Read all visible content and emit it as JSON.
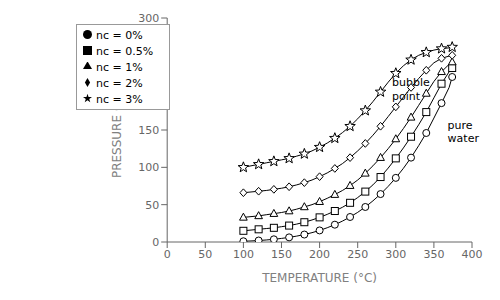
{
  "chart_data": {
    "type": "line",
    "xlabel": "TEMPERATURE (°C)",
    "ylabel": "PRESSURE (bar)",
    "xlim": [
      0,
      400
    ],
    "ylim": [
      0,
      300
    ],
    "xticks": [
      0,
      50,
      100,
      150,
      200,
      250,
      300,
      350,
      400
    ],
    "yticks": [
      0,
      50,
      100,
      150,
      200,
      250,
      300
    ],
    "grid": false,
    "legend": "upper left",
    "annotations": [
      {
        "text": "bubble\npoint",
        "x": 295,
        "y": 205
      },
      {
        "text": "pure\nwater",
        "x": 368,
        "y": 148
      }
    ],
    "x": [
      100,
      110,
      120,
      130,
      140,
      150,
      160,
      170,
      180,
      190,
      200,
      210,
      220,
      230,
      240,
      250,
      260,
      270,
      280,
      290,
      300,
      310,
      320,
      330,
      340,
      350,
      360,
      370,
      374
    ],
    "series": [
      {
        "name": "nc = 0%",
        "color": "#000000",
        "marker": "circle",
        "values": [
          1.0,
          1.4,
          2.0,
          2.7,
          3.6,
          4.8,
          6.2,
          7.9,
          10.0,
          12.5,
          15.5,
          19.1,
          23.2,
          28.0,
          33.5,
          39.7,
          46.9,
          55.1,
          64.2,
          74.5,
          85.9,
          98.7,
          113,
          129,
          146,
          166,
          186,
          207,
          221
        ]
      },
      {
        "name": "nc = 0.5%",
        "color": "#000000",
        "marker": "square",
        "values": [
          15,
          16,
          17,
          18,
          19,
          20.5,
          22,
          24,
          26.5,
          29.5,
          33.0,
          37.0,
          41.5,
          46.5,
          52.5,
          59.5,
          67.5,
          76.5,
          87.0,
          99.0,
          112,
          126,
          141,
          157,
          174,
          193,
          212,
          228,
          233
        ]
      },
      {
        "name": "nc = 1%",
        "color": "#000000",
        "marker": "triangle",
        "values": [
          33,
          34,
          35,
          36.5,
          38,
          39.5,
          41.5,
          44,
          47,
          50,
          54,
          58.5,
          63.5,
          69,
          75.5,
          83,
          92,
          102,
          113,
          125,
          138,
          152,
          167,
          183,
          199,
          215,
          228,
          238,
          241
        ]
      },
      {
        "name": "nc = 2%",
        "color": "#000000",
        "marker": "diamond",
        "values": [
          66,
          67,
          68,
          69,
          70.5,
          72,
          74,
          76.5,
          79.5,
          83,
          87.5,
          92.5,
          98.5,
          105,
          113,
          122,
          132,
          143,
          155,
          168,
          181,
          194,
          207,
          219,
          230,
          240,
          246,
          249,
          250
        ]
      },
      {
        "name": "nc = 3%",
        "color": "#000000",
        "marker": "star",
        "values": [
          100,
          102,
          104,
          106,
          108,
          110,
          112,
          115,
          118,
          122,
          127,
          132.5,
          139,
          146.5,
          155,
          165,
          176,
          188,
          201,
          214,
          226,
          236,
          244,
          250,
          254,
          257,
          259,
          260,
          261
        ]
      }
    ]
  }
}
